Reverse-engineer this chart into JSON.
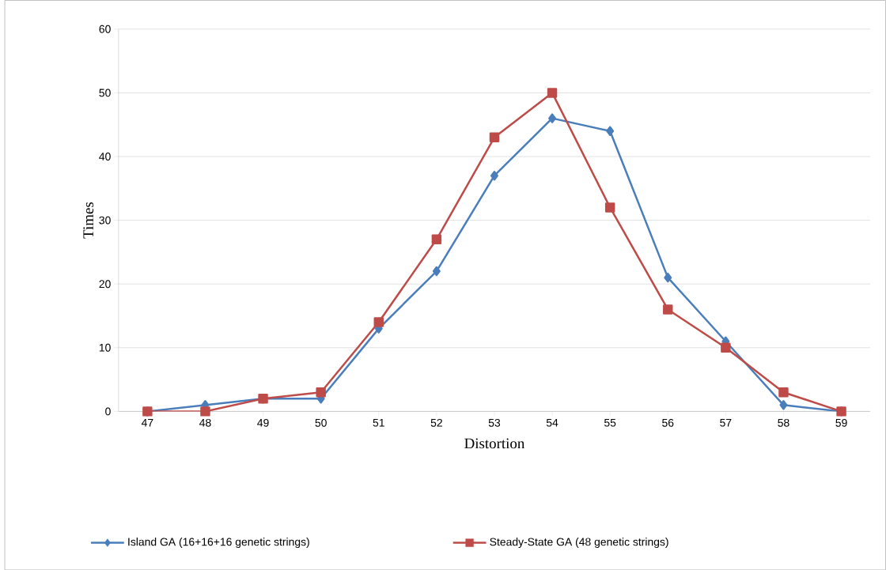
{
  "chart_data": {
    "type": "line",
    "xlabel": "Distortion",
    "ylabel": "Times",
    "categories": [
      "47",
      "48",
      "49",
      "50",
      "51",
      "52",
      "53",
      "54",
      "55",
      "56",
      "57",
      "58",
      "59"
    ],
    "series": [
      {
        "name": "Island GA (16+16+16 genetic strings)",
        "color": "#4a7ebb",
        "marker": "diamond",
        "values": [
          0,
          1,
          2,
          2,
          13,
          22,
          37,
          46,
          44,
          21,
          11,
          1,
          0
        ]
      },
      {
        "name": "Steady-State GA (48 genetic strings)",
        "color": "#be4b48",
        "marker": "square",
        "values": [
          0,
          0,
          2,
          3,
          14,
          27,
          43,
          50,
          32,
          16,
          10,
          3,
          0
        ]
      }
    ],
    "ylim": [
      0,
      60
    ],
    "yticks": [
      0,
      10,
      20,
      30,
      40,
      50,
      60
    ],
    "grid": "y",
    "legend": "bottom",
    "line_style": "solid"
  }
}
